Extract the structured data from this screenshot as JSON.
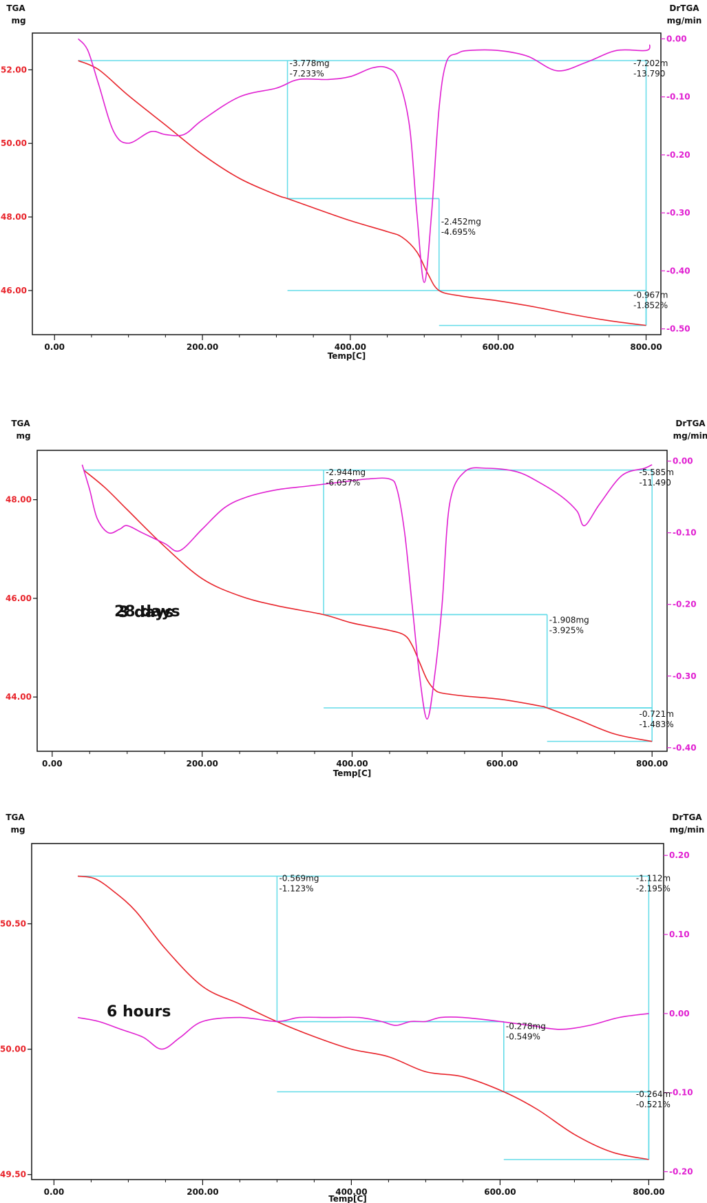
{
  "colors": {
    "tga": "#e8232a",
    "drtga": "#e01fd1",
    "step": "#62dbe8",
    "axis": "#111111",
    "text": "#111111"
  },
  "chart_data": [
    {
      "type": "line",
      "title": "",
      "left_label_1": "TGA",
      "left_label_2": "mg",
      "right_label_1": "DrTGA",
      "right_label_2": "mg/min",
      "xlabel": "Temp[C]",
      "xlim": [
        -30,
        820
      ],
      "xticks": [
        "0.00",
        "200.00",
        "400.00",
        "600.00",
        "800.00"
      ],
      "ylim": [
        44.8,
        53.0
      ],
      "yticks": [
        "52.00",
        "50.00",
        "48.00",
        "46.00"
      ],
      "ytick_values": [
        52,
        50,
        48,
        46
      ],
      "y2lim": [
        -0.51,
        0.01
      ],
      "y2ticks": [
        "0.00",
        "-0.10",
        "-0.20",
        "-0.30",
        "-0.40",
        "-0.50"
      ],
      "y2tick_values": [
        0.0,
        -0.1,
        -0.2,
        -0.3,
        -0.4,
        -0.5
      ],
      "series": [
        {
          "axis": "left",
          "x": [
            32,
            60,
            100,
            150,
            200,
            250,
            300,
            315,
            350,
            400,
            450,
            470,
            490,
            505,
            520,
            550,
            600,
            650,
            700,
            750,
            800
          ],
          "y": [
            52.25,
            52.0,
            51.3,
            50.5,
            49.7,
            49.05,
            48.6,
            48.5,
            48.25,
            47.9,
            47.6,
            47.45,
            47.05,
            46.45,
            46.0,
            45.85,
            45.72,
            45.55,
            45.35,
            45.18,
            45.05
          ]
        },
        {
          "axis": "right",
          "x": [
            32,
            45,
            60,
            80,
            100,
            130,
            150,
            175,
            200,
            250,
            300,
            330,
            370,
            400,
            430,
            450,
            465,
            480,
            490,
            500,
            510,
            520,
            530,
            545,
            560,
            600,
            640,
            680,
            720,
            760,
            800,
            805
          ],
          "y": [
            0.0,
            -0.02,
            -0.08,
            -0.16,
            -0.18,
            -0.16,
            -0.165,
            -0.165,
            -0.14,
            -0.1,
            -0.085,
            -0.07,
            -0.07,
            -0.065,
            -0.05,
            -0.05,
            -0.07,
            -0.15,
            -0.3,
            -0.42,
            -0.3,
            -0.12,
            -0.04,
            -0.025,
            -0.02,
            -0.02,
            -0.03,
            -0.055,
            -0.04,
            -0.02,
            -0.02,
            -0.01
          ]
        }
      ],
      "steps": [
        {
          "x_start": 32,
          "y_start": 52.25,
          "x_mid": 315,
          "y_mid": 48.5,
          "x_end": 800
        },
        {
          "x_start": 315,
          "y_start": 48.5,
          "x_mid": 520,
          "y_mid": 46.0,
          "x_end": 520
        },
        {
          "x_start": 520,
          "y_start": 46.0,
          "x_mid": 800,
          "y_mid": 45.05,
          "x_end": 800
        }
      ],
      "annotations": [
        {
          "lines": [
            "-3.778mg",
            "-7.233%"
          ],
          "x": 316,
          "y": 52.1
        },
        {
          "lines": [
            "-2.452mg",
            "-4.695%"
          ],
          "x": 521,
          "y": 47.8
        },
        {
          "lines": [
            "-0.967m",
            "-1.852%"
          ],
          "x": 781,
          "y": 45.8
        },
        {
          "lines": [
            "-7.202m",
            "-13.790"
          ],
          "x": 781,
          "y": 52.1
        }
      ],
      "overlay_text": ""
    },
    {
      "type": "line",
      "title": "",
      "left_label_1": "TGA",
      "left_label_2": "mg",
      "right_label_1": "DrTGA",
      "right_label_2": "mg/min",
      "xlabel": "Temp[C]",
      "xlim": [
        -20,
        820
      ],
      "xticks": [
        "0.00",
        "200.00",
        "400.00",
        "600.00",
        "800.00"
      ],
      "ylim": [
        42.9,
        49.0
      ],
      "yticks": [
        "48.00",
        "46.00",
        "44.00"
      ],
      "ytick_values": [
        48,
        46,
        44
      ],
      "y2lim": [
        -0.405,
        0.015
      ],
      "y2ticks": [
        "0.00",
        "-0.10",
        "-0.20",
        "-0.30",
        "-0.40"
      ],
      "y2tick_values": [
        0.0,
        -0.1,
        -0.2,
        -0.3,
        -0.4
      ],
      "series": [
        {
          "axis": "left",
          "x": [
            42,
            70,
            100,
            150,
            200,
            250,
            300,
            362,
            400,
            450,
            470,
            480,
            490,
            500,
            510,
            520,
            550,
            600,
            650,
            660,
            700,
            750,
            800
          ],
          "y": [
            48.6,
            48.25,
            47.8,
            47.05,
            46.4,
            46.05,
            45.85,
            45.67,
            45.5,
            45.35,
            45.25,
            45.05,
            44.7,
            44.35,
            44.15,
            44.08,
            44.02,
            43.95,
            43.82,
            43.78,
            43.55,
            43.25,
            43.1
          ]
        },
        {
          "axis": "right",
          "x": [
            40,
            50,
            60,
            75,
            90,
            100,
            120,
            150,
            170,
            200,
            230,
            260,
            300,
            340,
            380,
            420,
            450,
            460,
            470,
            480,
            490,
            500,
            510,
            520,
            530,
            550,
            580,
            620,
            650,
            680,
            700,
            710,
            730,
            760,
            790,
            800
          ],
          "y": [
            -0.005,
            -0.04,
            -0.08,
            -0.1,
            -0.095,
            -0.09,
            -0.1,
            -0.115,
            -0.125,
            -0.095,
            -0.065,
            -0.05,
            -0.04,
            -0.035,
            -0.03,
            -0.025,
            -0.025,
            -0.04,
            -0.1,
            -0.2,
            -0.3,
            -0.36,
            -0.3,
            -0.2,
            -0.06,
            -0.015,
            -0.01,
            -0.015,
            -0.03,
            -0.05,
            -0.07,
            -0.09,
            -0.06,
            -0.02,
            -0.01,
            -0.005
          ]
        }
      ],
      "steps": [
        {
          "x_start": 42,
          "y_start": 48.6,
          "x_mid": 362,
          "y_mid": 45.67,
          "x_end": 800
        },
        {
          "x_start": 362,
          "y_start": 45.67,
          "x_mid": 660,
          "y_mid": 43.78,
          "x_end": 660
        },
        {
          "x_start": 660,
          "y_start": 43.78,
          "x_mid": 800,
          "y_mid": 43.1,
          "x_end": 800
        }
      ],
      "annotations": [
        {
          "lines": [
            "-2.944mg",
            "-6.057%"
          ],
          "x": 363,
          "y": 48.5
        },
        {
          "lines": [
            "-1.908mg",
            "-3.925%"
          ],
          "x": 661,
          "y": 45.5
        },
        {
          "lines": [
            "-0.721m",
            "-1.483%"
          ],
          "x": 781,
          "y": 43.6
        },
        {
          "lines": [
            "-5.585m",
            "-11.490"
          ],
          "x": 781,
          "y": 48.5
        }
      ],
      "overlay_text": "28 days",
      "overlay_text_2": "3 days"
    },
    {
      "type": "line",
      "title": "",
      "left_label_1": "TGA",
      "left_label_2": "mg",
      "right_label_1": "DrTGA",
      "right_label_2": "mg/min",
      "xlabel": "Temp[C]",
      "xlim": [
        -30,
        820
      ],
      "xticks": [
        "0.00",
        "200.00",
        "400.00",
        "600.00",
        "800.00"
      ],
      "ylim": [
        49.48,
        50.82
      ],
      "yticks": [
        "50.50",
        "50.00",
        "49.50"
      ],
      "ytick_values": [
        50.5,
        50.0,
        49.5
      ],
      "y2lim": [
        -0.21,
        0.215
      ],
      "y2ticks": [
        "0.20",
        "0.10",
        "0.00",
        "-0.10",
        "-0.20"
      ],
      "y2tick_values": [
        0.2,
        0.1,
        0.0,
        -0.1,
        -0.2
      ],
      "series": [
        {
          "axis": "left",
          "x": [
            32,
            55,
            80,
            110,
            150,
            200,
            250,
            300,
            350,
            400,
            450,
            500,
            550,
            605,
            650,
            700,
            750,
            800
          ],
          "y": [
            50.69,
            50.68,
            50.63,
            50.55,
            50.4,
            50.25,
            50.18,
            50.11,
            50.05,
            50.0,
            49.97,
            49.91,
            49.89,
            49.83,
            49.76,
            49.66,
            49.59,
            49.56
          ]
        },
        {
          "axis": "right",
          "x": [
            32,
            60,
            90,
            120,
            145,
            170,
            200,
            250,
            300,
            330,
            370,
            410,
            440,
            460,
            480,
            500,
            520,
            550,
            600,
            640,
            680,
            720,
            760,
            800
          ],
          "y": [
            -0.005,
            -0.01,
            -0.02,
            -0.03,
            -0.045,
            -0.03,
            -0.01,
            -0.005,
            -0.01,
            -0.005,
            -0.005,
            -0.005,
            -0.01,
            -0.015,
            -0.01,
            -0.01,
            -0.005,
            -0.005,
            -0.01,
            -0.015,
            -0.02,
            -0.015,
            -0.005,
            0.0
          ]
        }
      ],
      "steps": [
        {
          "x_start": 32,
          "y_start": 50.69,
          "x_mid": 300,
          "y_mid": 50.11,
          "x_end": 800
        },
        {
          "x_start": 300,
          "y_start": 50.11,
          "x_mid": 605,
          "y_mid": 49.83,
          "x_end": 605
        },
        {
          "x_start": 605,
          "y_start": 49.83,
          "x_mid": 800,
          "y_mid": 49.56,
          "x_end": 800
        }
      ],
      "annotations": [
        {
          "lines": [
            "-0.569mg",
            "-1.123%"
          ],
          "x": 301,
          "y": 50.67
        },
        {
          "lines": [
            "-0.278mg",
            "-0.549%"
          ],
          "x": 606,
          "y": 50.08
        },
        {
          "lines": [
            "-0.264m",
            "-0.521%"
          ],
          "x": 781,
          "y": 49.81
        },
        {
          "lines": [
            "-1.112m",
            "-2.195%"
          ],
          "x": 781,
          "y": 50.67
        }
      ],
      "overlay_text": "6 hours"
    }
  ]
}
